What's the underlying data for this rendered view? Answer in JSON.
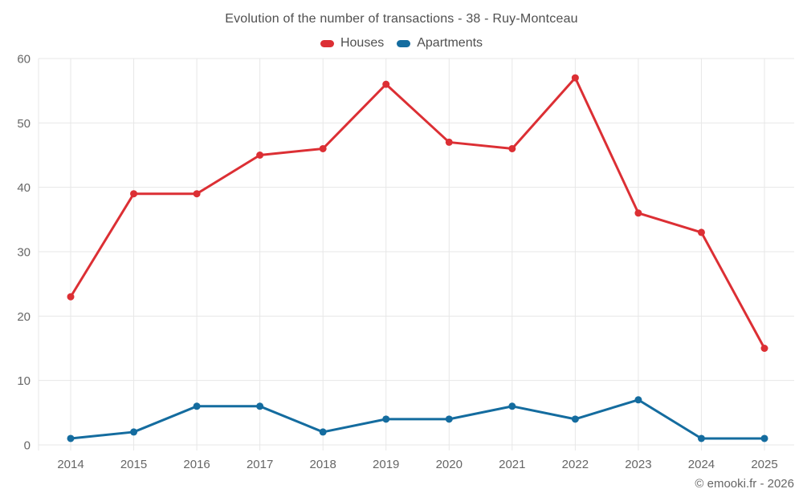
{
  "title": "Evolution of the number of transactions - 38 - Ruy-Montceau",
  "watermark": "© emooki.fr - 2026",
  "chart_data": {
    "type": "line",
    "x": [
      "2014",
      "2015",
      "2016",
      "2017",
      "2018",
      "2019",
      "2020",
      "2021",
      "2022",
      "2023",
      "2024",
      "2025"
    ],
    "series": [
      {
        "name": "Houses",
        "color": "#dc2f34",
        "values": [
          23,
          39,
          39,
          45,
          46,
          56,
          47,
          46,
          57,
          36,
          33,
          15
        ]
      },
      {
        "name": "Apartments",
        "color": "#146c9f",
        "values": [
          1,
          2,
          6,
          6,
          2,
          4,
          4,
          6,
          4,
          7,
          1,
          1
        ]
      }
    ],
    "title": "Evolution of the number of transactions - 38 - Ruy-Montceau",
    "xlabel": "",
    "ylabel": "",
    "ylim": [
      0,
      60
    ],
    "yticks": [
      0,
      10,
      20,
      30,
      40,
      50,
      60
    ],
    "grid": true,
    "legend_position": "top",
    "grid_color": "#e7e7e7",
    "axis_label_color": "#666666",
    "title_color": "#4f4f4f"
  }
}
